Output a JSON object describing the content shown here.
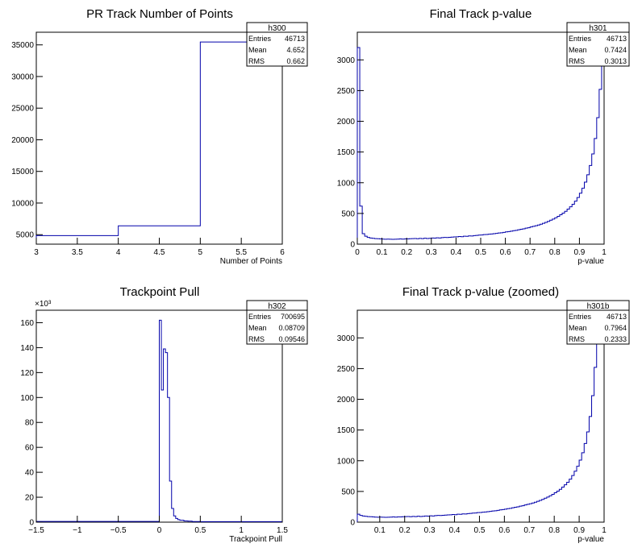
{
  "chart_data": [
    {
      "type": "histogram",
      "title": "PR Track Number of Points",
      "xlabel": "Number of Points",
      "ylabel": "",
      "xlim": [
        3,
        6
      ],
      "ylim": [
        3500,
        37000
      ],
      "xticks": [
        3,
        3.5,
        4,
        4.5,
        5,
        5.5,
        6
      ],
      "xtick_labels": [
        "3",
        "3.5",
        "4",
        "4.5",
        "5",
        "5.5",
        "6"
      ],
      "yticks": [
        5000,
        10000,
        15000,
        20000,
        25000,
        30000,
        35000
      ],
      "ytick_labels": [
        "5000",
        "10000",
        "15000",
        "20000",
        "25000",
        "30000",
        "35000"
      ],
      "bins": [
        3,
        4,
        5,
        6
      ],
      "values": [
        4850,
        6400,
        35450
      ],
      "stats": {
        "name": "h300",
        "rows": [
          [
            "Entries",
            "46713"
          ],
          [
            "Mean",
            "4.652"
          ],
          [
            "RMS",
            "0.662"
          ]
        ]
      }
    },
    {
      "type": "histogram",
      "title": "Final Track p-value",
      "xlabel": "p-value",
      "ylabel": "",
      "xlim": [
        0,
        1
      ],
      "ylim": [
        0,
        3450
      ],
      "xticks": [
        0,
        0.1,
        0.2,
        0.3,
        0.4,
        0.5,
        0.6,
        0.7,
        0.8,
        0.9,
        1
      ],
      "xtick_labels": [
        "0",
        "0.1",
        "0.2",
        "0.3",
        "0.4",
        "0.5",
        "0.6",
        "0.7",
        "0.8",
        "0.9",
        "1"
      ],
      "yticks": [
        0,
        500,
        1000,
        1500,
        2000,
        2500,
        3000
      ],
      "ytick_labels": [
        "0",
        "500",
        "1000",
        "1500",
        "2000",
        "2500",
        "3000"
      ],
      "bin_width": 0.01,
      "values": [
        3200,
        620,
        170,
        130,
        110,
        100,
        95,
        90,
        88,
        85,
        82,
        80,
        82,
        80,
        78,
        80,
        82,
        85,
        82,
        86,
        85,
        88,
        90,
        92,
        88,
        94,
        90,
        96,
        92,
        95,
        100,
        98,
        104,
        100,
        106,
        110,
        108,
        112,
        115,
        118,
        120,
        125,
        122,
        130,
        128,
        135,
        132,
        140,
        142,
        148,
        150,
        155,
        158,
        162,
        165,
        170,
        175,
        182,
        185,
        192,
        200,
        205,
        212,
        220,
        225,
        235,
        242,
        250,
        260,
        268,
        280,
        290,
        300,
        312,
        325,
        340,
        355,
        370,
        390,
        408,
        430,
        452,
        478,
        505,
        535,
        570,
        608,
        650,
        700,
        760,
        830,
        910,
        1010,
        1130,
        1280,
        1470,
        1720,
        2060,
        2520,
        2900
      ],
      "stats": {
        "name": "h301",
        "rows": [
          [
            "Entries",
            "46713"
          ],
          [
            "Mean",
            "0.7424"
          ],
          [
            "RMS",
            "0.3013"
          ]
        ]
      }
    },
    {
      "type": "histogram",
      "title": "Trackpoint Pull",
      "xlabel": "Trackpoint Pull",
      "ylabel": "",
      "y_multiplier": "×10³",
      "xlim": [
        -1.5,
        1.5
      ],
      "ylim": [
        0,
        170
      ],
      "xticks": [
        -1.5,
        -1,
        -0.5,
        0,
        0.5,
        1,
        1.5
      ],
      "xtick_labels": [
        "−1.5",
        "−1",
        "−0.5",
        "0",
        "0.5",
        "1",
        "1.5"
      ],
      "yticks": [
        0,
        20,
        40,
        60,
        80,
        100,
        120,
        140,
        160
      ],
      "ytick_labels": [
        "0",
        "20",
        "40",
        "60",
        "80",
        "100",
        "120",
        "140",
        "160"
      ],
      "bins_edges": [
        -1.5,
        0,
        0.025,
        0.05,
        0.075,
        0.1,
        0.125,
        0.15,
        0.175,
        0.2,
        0.225,
        0.25,
        0.3,
        0.35,
        0.4,
        0.5,
        1.5
      ],
      "values": [
        0.6,
        162,
        106,
        139,
        136,
        100,
        33,
        11,
        5,
        3,
        2,
        1.5,
        1,
        0.8,
        0.5,
        0.4
      ],
      "stats": {
        "name": "h302",
        "rows": [
          [
            "Entries",
            "700695"
          ],
          [
            "Mean",
            "0.08709"
          ],
          [
            "RMS",
            "0.09546"
          ]
        ]
      }
    },
    {
      "type": "histogram",
      "title": "Final Track p-value (zoomed)",
      "xlabel": "p-value",
      "ylabel": "",
      "xlim": [
        0.01,
        1
      ],
      "ylim": [
        0,
        3450
      ],
      "xticks": [
        0.1,
        0.2,
        0.3,
        0.4,
        0.5,
        0.6,
        0.7,
        0.8,
        0.9,
        1
      ],
      "xtick_labels": [
        "0.1",
        "0.2",
        "0.3",
        "0.4",
        "0.5",
        "0.6",
        "0.7",
        "0.8",
        "0.9",
        "1"
      ],
      "yticks": [
        0,
        500,
        1000,
        1500,
        2000,
        2500,
        3000
      ],
      "ytick_labels": [
        "0",
        "500",
        "1000",
        "1500",
        "2000",
        "2500",
        "3000"
      ],
      "bin_width": 0.01,
      "values": [
        130,
        110,
        100,
        95,
        90,
        88,
        85,
        82,
        80,
        82,
        80,
        78,
        80,
        82,
        85,
        82,
        86,
        85,
        88,
        90,
        92,
        88,
        94,
        90,
        96,
        92,
        95,
        100,
        98,
        104,
        100,
        106,
        110,
        108,
        112,
        115,
        118,
        120,
        125,
        122,
        130,
        128,
        135,
        132,
        140,
        142,
        148,
        150,
        155,
        158,
        162,
        165,
        170,
        175,
        182,
        185,
        192,
        200,
        205,
        212,
        220,
        225,
        235,
        242,
        250,
        260,
        268,
        280,
        290,
        300,
        312,
        325,
        340,
        355,
        370,
        390,
        408,
        430,
        452,
        478,
        505,
        535,
        570,
        608,
        650,
        700,
        760,
        830,
        910,
        1010,
        1130,
        1280,
        1470,
        1720,
        2060,
        2520,
        2900,
        3200,
        3350
      ],
      "stats": {
        "name": "h301b",
        "rows": [
          [
            "Entries",
            "46713"
          ],
          [
            "Mean",
            "0.7964"
          ],
          [
            "RMS",
            "0.2333"
          ]
        ]
      }
    }
  ]
}
